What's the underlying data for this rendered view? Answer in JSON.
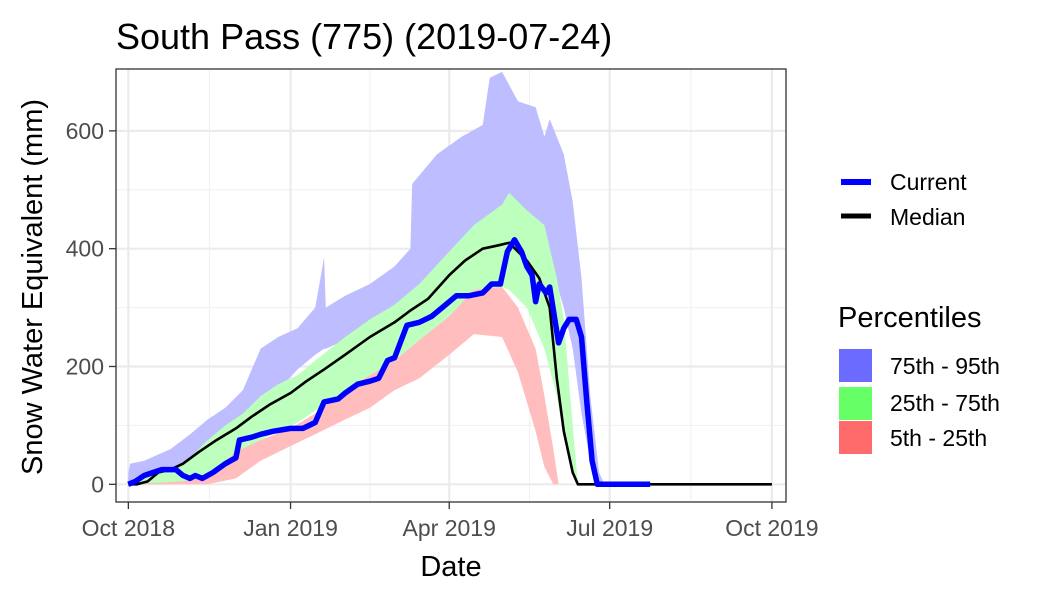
{
  "chart_data": {
    "type": "area",
    "title": "South Pass (775) (2019-07-24)",
    "xlabel": "Date",
    "ylabel": "Snow Water Equivalent (mm)",
    "xlim": [
      "2018-09-24",
      "2019-10-09"
    ],
    "ylim": [
      -30,
      705
    ],
    "x_ticks": [
      {
        "date": "2018-10-01",
        "label": "Oct 2018"
      },
      {
        "date": "2019-01-01",
        "label": "Jan 2019"
      },
      {
        "date": "2019-04-01",
        "label": "Apr 2019"
      },
      {
        "date": "2019-07-01",
        "label": "Jul 2019"
      },
      {
        "date": "2019-10-01",
        "label": "Oct 2019"
      }
    ],
    "y_ticks": [
      0,
      200,
      400,
      600
    ],
    "grid": true,
    "legend_placement": "right",
    "legend": {
      "lines": [
        {
          "name": "Current",
          "color": "#0000ff"
        },
        {
          "name": "Median",
          "color": "#000000"
        }
      ],
      "percentiles_title": "Percentiles",
      "bands": [
        {
          "name": "75th - 95th",
          "color": "#6b6bff"
        },
        {
          "name": "25th - 75th",
          "color": "#66ff66"
        },
        {
          "name": "5th - 25th",
          "color": "#ff6b6b"
        }
      ]
    },
    "series": [
      {
        "name": "75th - 95th",
        "kind": "band",
        "color": "#bdbdff",
        "points": [
          [
            "2018-10-01",
            0,
            20
          ],
          [
            "2018-10-02",
            0,
            35
          ],
          [
            "2018-10-10",
            5,
            40
          ],
          [
            "2018-10-25",
            15,
            60
          ],
          [
            "2018-11-05",
            25,
            85
          ],
          [
            "2018-11-15",
            45,
            110
          ],
          [
            "2018-11-25",
            75,
            130
          ],
          [
            "2018-12-05",
            100,
            160
          ],
          [
            "2018-12-15",
            130,
            230
          ],
          [
            "2018-12-25",
            160,
            250
          ],
          [
            "2019-01-05",
            195,
            265
          ],
          [
            "2019-01-15",
            220,
            300
          ],
          [
            "2019-01-20",
            230,
            385
          ],
          [
            "2019-01-21",
            230,
            300
          ],
          [
            "2019-02-01",
            245,
            320
          ],
          [
            "2019-02-15",
            270,
            340
          ],
          [
            "2019-03-01",
            300,
            370
          ],
          [
            "2019-03-10",
            320,
            400
          ],
          [
            "2019-03-11",
            325,
            510
          ],
          [
            "2019-03-25",
            355,
            560
          ],
          [
            "2019-04-08",
            390,
            590
          ],
          [
            "2019-04-20",
            420,
            610
          ],
          [
            "2019-04-24",
            440,
            690
          ],
          [
            "2019-05-01",
            460,
            700
          ],
          [
            "2019-05-10",
            470,
            650
          ],
          [
            "2019-05-20",
            440,
            640
          ],
          [
            "2019-05-25",
            400,
            590
          ],
          [
            "2019-05-28",
            380,
            620
          ],
          [
            "2019-06-05",
            300,
            560
          ],
          [
            "2019-06-10",
            230,
            480
          ],
          [
            "2019-06-15",
            120,
            350
          ],
          [
            "2019-06-20",
            40,
            150
          ],
          [
            "2019-06-25",
            0,
            20
          ],
          [
            "2019-06-28",
            0,
            0
          ]
        ]
      },
      {
        "name": "25th - 75th",
        "kind": "band",
        "color": "#bdffbd",
        "points": [
          [
            "2018-10-01",
            0,
            5
          ],
          [
            "2018-10-10",
            0,
            10
          ],
          [
            "2018-10-25",
            0,
            25
          ],
          [
            "2018-11-05",
            5,
            45
          ],
          [
            "2018-11-15",
            15,
            75
          ],
          [
            "2018-11-25",
            30,
            100
          ],
          [
            "2018-12-05",
            55,
            120
          ],
          [
            "2018-12-15",
            75,
            150
          ],
          [
            "2018-12-25",
            90,
            170
          ],
          [
            "2019-01-05",
            105,
            185
          ],
          [
            "2019-01-15",
            125,
            210
          ],
          [
            "2019-02-01",
            160,
            250
          ],
          [
            "2019-02-15",
            185,
            280
          ],
          [
            "2019-03-01",
            210,
            305
          ],
          [
            "2019-03-15",
            245,
            340
          ],
          [
            "2019-04-01",
            285,
            395
          ],
          [
            "2019-04-15",
            330,
            440
          ],
          [
            "2019-05-01",
            335,
            475
          ],
          [
            "2019-05-05",
            330,
            495
          ],
          [
            "2019-05-15",
            300,
            465
          ],
          [
            "2019-05-25",
            230,
            440
          ],
          [
            "2019-06-01",
            150,
            350
          ],
          [
            "2019-06-05",
            80,
            280
          ],
          [
            "2019-06-10",
            20,
            100
          ],
          [
            "2019-06-13",
            0,
            0
          ]
        ]
      },
      {
        "name": "5th - 25th",
        "kind": "band",
        "color": "#ffbdbd",
        "points": [
          [
            "2018-10-01",
            0,
            0
          ],
          [
            "2018-11-01",
            0,
            5
          ],
          [
            "2018-11-15",
            0,
            15
          ],
          [
            "2018-12-01",
            10,
            55
          ],
          [
            "2018-12-15",
            40,
            75
          ],
          [
            "2019-01-01",
            65,
            95
          ],
          [
            "2019-01-15",
            85,
            120
          ],
          [
            "2019-02-01",
            110,
            160
          ],
          [
            "2019-02-15",
            130,
            185
          ],
          [
            "2019-03-01",
            160,
            210
          ],
          [
            "2019-03-15",
            180,
            245
          ],
          [
            "2019-04-01",
            220,
            285
          ],
          [
            "2019-04-15",
            255,
            330
          ],
          [
            "2019-05-01",
            250,
            335
          ],
          [
            "2019-05-10",
            190,
            300
          ],
          [
            "2019-05-20",
            90,
            230
          ],
          [
            "2019-05-25",
            30,
            150
          ],
          [
            "2019-05-30",
            0,
            60
          ],
          [
            "2019-06-02",
            0,
            0
          ]
        ]
      },
      {
        "name": "Median",
        "kind": "line",
        "color": "#000000",
        "points": [
          [
            "2018-10-01",
            0
          ],
          [
            "2018-10-06",
            0
          ],
          [
            "2018-10-12",
            5
          ],
          [
            "2018-10-18",
            20
          ],
          [
            "2018-10-25",
            25
          ],
          [
            "2018-11-01",
            35
          ],
          [
            "2018-11-10",
            55
          ],
          [
            "2018-11-20",
            75
          ],
          [
            "2018-12-01",
            95
          ],
          [
            "2018-12-10",
            115
          ],
          [
            "2018-12-20",
            135
          ],
          [
            "2019-01-01",
            155
          ],
          [
            "2019-01-10",
            175
          ],
          [
            "2019-01-20",
            195
          ],
          [
            "2019-02-01",
            220
          ],
          [
            "2019-02-15",
            250
          ],
          [
            "2019-03-01",
            275
          ],
          [
            "2019-03-10",
            295
          ],
          [
            "2019-03-20",
            315
          ],
          [
            "2019-04-01",
            355
          ],
          [
            "2019-04-10",
            380
          ],
          [
            "2019-04-20",
            400
          ],
          [
            "2019-04-28",
            405
          ],
          [
            "2019-05-05",
            410
          ],
          [
            "2019-05-10",
            395
          ],
          [
            "2019-05-15",
            380
          ],
          [
            "2019-05-22",
            350
          ],
          [
            "2019-05-28",
            300
          ],
          [
            "2019-06-01",
            180
          ],
          [
            "2019-06-05",
            90
          ],
          [
            "2019-06-10",
            20
          ],
          [
            "2019-06-13",
            0
          ],
          [
            "2019-10-01",
            0
          ]
        ]
      },
      {
        "name": "Current",
        "kind": "line",
        "color": "#0000ff",
        "points": [
          [
            "2018-10-01",
            0
          ],
          [
            "2018-10-05",
            5
          ],
          [
            "2018-10-10",
            15
          ],
          [
            "2018-10-15",
            20
          ],
          [
            "2018-10-20",
            25
          ],
          [
            "2018-10-28",
            25
          ],
          [
            "2018-11-01",
            15
          ],
          [
            "2018-11-05",
            10
          ],
          [
            "2018-11-08",
            15
          ],
          [
            "2018-11-12",
            10
          ],
          [
            "2018-11-18",
            20
          ],
          [
            "2018-11-25",
            35
          ],
          [
            "2018-12-01",
            45
          ],
          [
            "2018-12-03",
            75
          ],
          [
            "2018-12-10",
            80
          ],
          [
            "2018-12-15",
            85
          ],
          [
            "2018-12-22",
            90
          ],
          [
            "2019-01-01",
            95
          ],
          [
            "2019-01-08",
            95
          ],
          [
            "2019-01-15",
            105
          ],
          [
            "2019-01-20",
            140
          ],
          [
            "2019-01-28",
            145
          ],
          [
            "2019-02-01",
            155
          ],
          [
            "2019-02-08",
            170
          ],
          [
            "2019-02-15",
            175
          ],
          [
            "2019-02-20",
            180
          ],
          [
            "2019-02-25",
            210
          ],
          [
            "2019-03-01",
            215
          ],
          [
            "2019-03-08",
            270
          ],
          [
            "2019-03-15",
            275
          ],
          [
            "2019-03-22",
            285
          ],
          [
            "2019-03-28",
            300
          ],
          [
            "2019-04-05",
            320
          ],
          [
            "2019-04-12",
            320
          ],
          [
            "2019-04-20",
            325
          ],
          [
            "2019-04-25",
            340
          ],
          [
            "2019-04-30",
            340
          ],
          [
            "2019-05-04",
            395
          ],
          [
            "2019-05-08",
            415
          ],
          [
            "2019-05-12",
            395
          ],
          [
            "2019-05-15",
            370
          ],
          [
            "2019-05-18",
            355
          ],
          [
            "2019-05-20",
            310
          ],
          [
            "2019-05-22",
            340
          ],
          [
            "2019-05-26",
            325
          ],
          [
            "2019-05-28",
            335
          ],
          [
            "2019-06-02",
            240
          ],
          [
            "2019-06-05",
            265
          ],
          [
            "2019-06-08",
            280
          ],
          [
            "2019-06-12",
            280
          ],
          [
            "2019-06-15",
            250
          ],
          [
            "2019-06-18",
            140
          ],
          [
            "2019-06-21",
            40
          ],
          [
            "2019-06-24",
            0
          ],
          [
            "2019-07-24",
            0
          ]
        ]
      }
    ]
  }
}
